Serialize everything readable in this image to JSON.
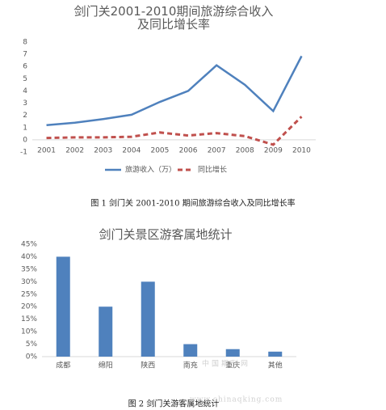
{
  "chart_data": [
    {
      "type": "line",
      "title": "剑门关2001-2010期间旅游综合收入及同比增长率",
      "categories": [
        "2001",
        "2002",
        "2003",
        "2004",
        "2005",
        "2006",
        "2007",
        "2008",
        "2009",
        "2010"
      ],
      "series": [
        {
          "name": "旅游收入（万）",
          "color": "#4f81bd",
          "dash": false,
          "values": [
            1.2,
            1.4,
            1.7,
            2.05,
            3.1,
            4.0,
            6.1,
            4.5,
            2.35,
            6.85
          ]
        },
        {
          "name": "同比增长",
          "color": "#c0504d",
          "dash": true,
          "values": [
            0.15,
            0.2,
            0.2,
            0.25,
            0.6,
            0.35,
            0.55,
            0.3,
            -0.4,
            1.9
          ]
        }
      ],
      "ylim": [
        -1,
        8
      ],
      "yticks": [
        -1,
        0,
        1,
        2,
        3,
        4,
        5,
        6,
        7,
        8
      ],
      "grid": false,
      "legend": "bottom"
    },
    {
      "type": "bar",
      "title": "剑门关景区游客属地统计",
      "categories": [
        "成都",
        "绵阳",
        "陕西",
        "南充",
        "重庆",
        "其他"
      ],
      "values": [
        40,
        20,
        30,
        5,
        3,
        2
      ],
      "color": "#4f81bd",
      "ylim": [
        0,
        45
      ],
      "yticks": [
        {
          "value": 0,
          "label": "0%"
        },
        {
          "value": 5,
          "label": "5%"
        },
        {
          "value": 10,
          "label": "10%"
        },
        {
          "value": 15,
          "label": "15%"
        },
        {
          "value": 20,
          "label": "20%"
        },
        {
          "value": 25,
          "label": "25%"
        },
        {
          "value": 30,
          "label": "30%"
        },
        {
          "value": 35,
          "label": "35%"
        },
        {
          "value": 40,
          "label": "40%"
        },
        {
          "value": 45,
          "label": "45%"
        }
      ],
      "grid": false
    }
  ],
  "captions": [
    "图 1  剑门关 2001-2010 期间旅游综合收入及同比增长率",
    "图 2  剑门关游客属地统计"
  ],
  "watermark": [
    "中国期刊网",
    "www.chinaqking.com"
  ]
}
